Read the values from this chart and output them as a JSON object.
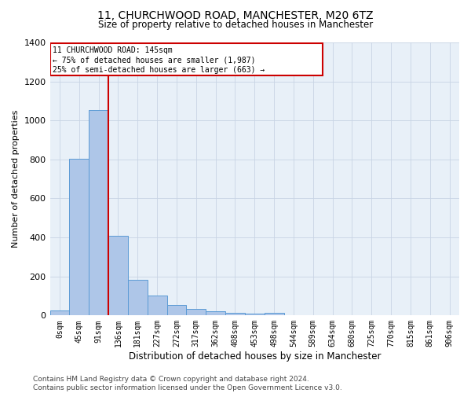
{
  "title": "11, CHURCHWOOD ROAD, MANCHESTER, M20 6TZ",
  "subtitle": "Size of property relative to detached houses in Manchester",
  "xlabel": "Distribution of detached houses by size in Manchester",
  "ylabel": "Number of detached properties",
  "bar_labels": [
    "0sqm",
    "45sqm",
    "91sqm",
    "136sqm",
    "181sqm",
    "227sqm",
    "272sqm",
    "317sqm",
    "362sqm",
    "408sqm",
    "453sqm",
    "498sqm",
    "544sqm",
    "589sqm",
    "634sqm",
    "680sqm",
    "725sqm",
    "770sqm",
    "815sqm",
    "861sqm",
    "906sqm"
  ],
  "bar_values": [
    25,
    805,
    1055,
    408,
    182,
    102,
    52,
    35,
    20,
    12,
    8,
    15,
    0,
    0,
    0,
    0,
    0,
    0,
    0,
    0,
    0
  ],
  "bar_color": "#aec6e8",
  "bar_edge_color": "#5b9bd5",
  "red_line_x": 2.5,
  "red_line_color": "#cc0000",
  "annotation_box_color": "#cc0000",
  "annotation_line1": "11 CHURCHWOOD ROAD: 145sqm",
  "annotation_line2": "← 75% of detached houses are smaller (1,987)",
  "annotation_line3": "25% of semi-detached houses are larger (663) →",
  "ylim": [
    0,
    1400
  ],
  "yticks": [
    0,
    200,
    400,
    600,
    800,
    1000,
    1200,
    1400
  ],
  "background_color": "#e8f0f8",
  "grid_color": "#c8d4e4",
  "footer": "Contains HM Land Registry data © Crown copyright and database right 2024.\nContains public sector information licensed under the Open Government Licence v3.0.",
  "title_fontsize": 10,
  "subtitle_fontsize": 8.5,
  "xlabel_fontsize": 8.5,
  "ylabel_fontsize": 8,
  "tick_fontsize": 7,
  "footer_fontsize": 6.5,
  "annotation_fontsize": 7
}
